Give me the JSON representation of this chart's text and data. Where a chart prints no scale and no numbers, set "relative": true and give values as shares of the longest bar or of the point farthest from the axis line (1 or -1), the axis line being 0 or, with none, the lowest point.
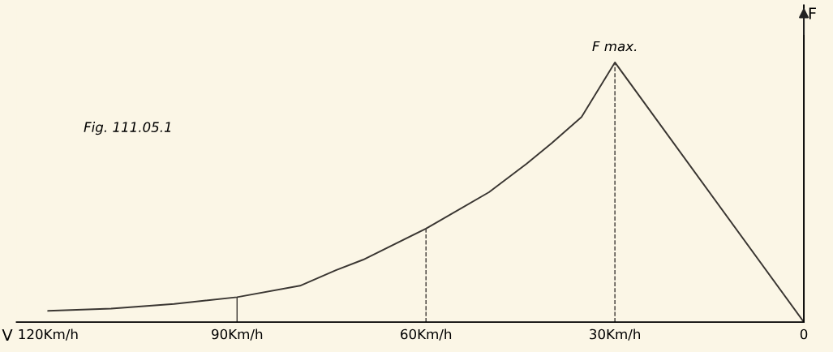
{
  "chart_data": {
    "type": "line",
    "relative": true,
    "xlabel": "V",
    "ylabel": "F",
    "x": [
      120,
      110,
      100,
      90,
      80,
      74.3,
      70,
      60,
      50,
      44,
      40,
      35.3,
      30,
      0
    ],
    "values": [
      0.043,
      0.052,
      0.07,
      0.096,
      0.14,
      0.2,
      0.24,
      0.36,
      0.5,
      0.61,
      0.69,
      0.79,
      1,
      0
    ],
    "color": "#3a3632",
    "xlim": [
      125,
      0
    ],
    "xticks": [
      {
        "value": 120,
        "label": "120Km/h"
      },
      {
        "value": 90,
        "label": "90Km/h"
      },
      {
        "value": 60,
        "label": "60Km/h"
      },
      {
        "value": 30,
        "label": "30Km/h"
      },
      0
    ],
    "ref_lines": [
      {
        "axis": "x",
        "value": 90,
        "line_style": "solid"
      },
      {
        "axis": "x",
        "value": 60,
        "line_style": "dashed"
      },
      {
        "axis": "x",
        "value": 30,
        "line_style": "dashed"
      }
    ],
    "annotations": [
      {
        "text": "F max.",
        "x": 30,
        "y": 1
      },
      "Fig. 111.05.1"
    ],
    "marker": "none",
    "line_style": "solid"
  }
}
